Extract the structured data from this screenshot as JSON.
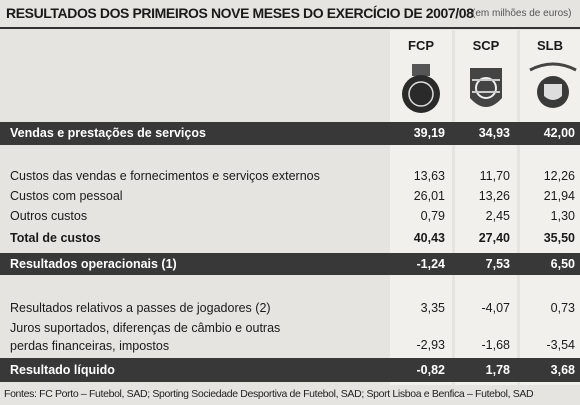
{
  "header": {
    "title": "RESULTADOS DOS PRIMEIROS NOVE MESES DO EXERCÍCIO DE 2007/08",
    "unit": "(em milhões de euros)"
  },
  "table": {
    "columns": [
      "FCP",
      "SCP",
      "SLB"
    ],
    "rows": [
      [
        "Vendas e prestações de serviços",
        "39,19",
        "34,93",
        "42,00"
      ],
      [
        "Custos das vendas e fornecimentos e serviços externos",
        "13,63",
        "11,70",
        "12,26"
      ],
      [
        "Custos com pessoal",
        "26,01",
        "13,26",
        "21,94"
      ],
      [
        "Outros custos",
        "0,79",
        "2,45",
        "1,30"
      ],
      [
        "Total de custos",
        "40,43",
        "27,40",
        "35,50"
      ],
      [
        "Resultados operacionais (1)",
        "-1,24",
        "7,53",
        "6,50"
      ],
      [
        "Resultados relativos a passes de jogadores (2)",
        "3,35",
        "-4,07",
        "0,73"
      ],
      [
        "Juros suportados, diferenças de câmbio e outras perdas financeiras, impostos",
        "-2,93",
        "-1,68",
        "-3,54"
      ],
      [
        "Resultado líquido",
        "-0,82",
        "1,78",
        "3,68"
      ]
    ]
  },
  "footer": "Fontes: FC Porto – Futebol, SAD; Sporting Sociedade Desportiva de Futebol, SAD; Sport Lisboa e Benfica – Futebol, SAD"
}
